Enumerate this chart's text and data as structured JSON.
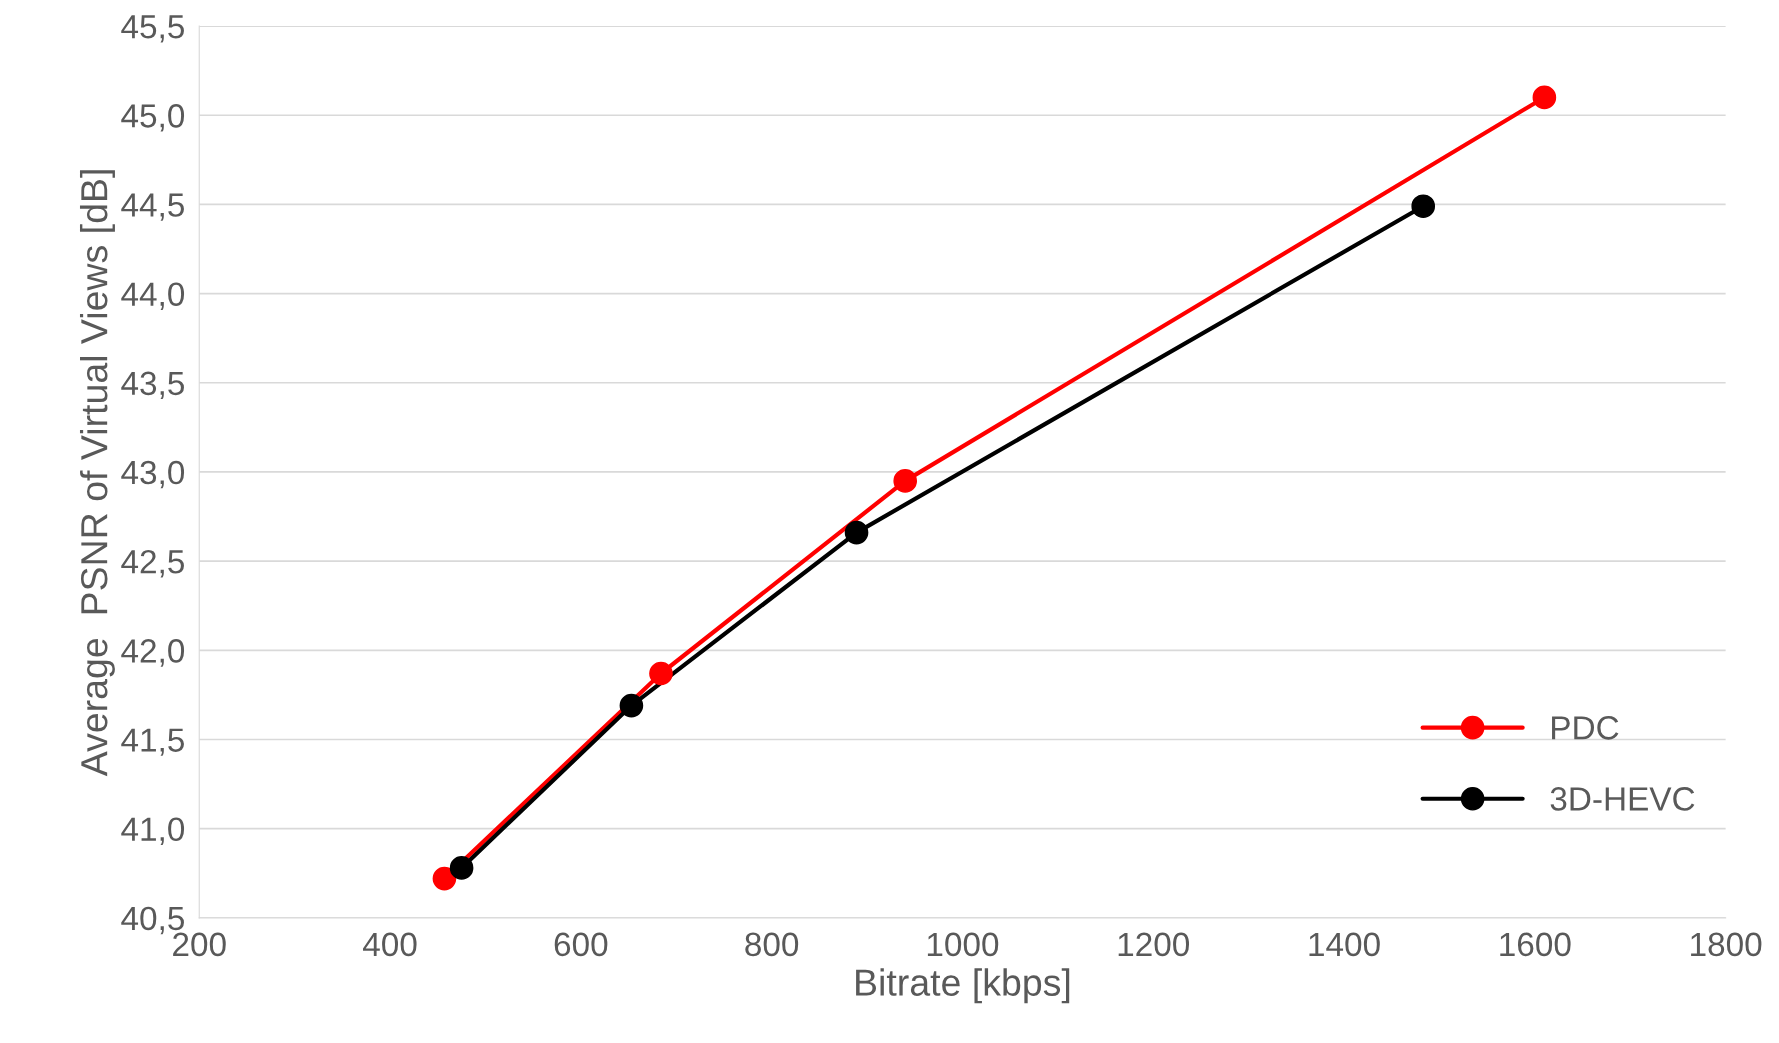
{
  "chart_data": {
    "type": "line",
    "xlabel": "Bitrate [kbps]",
    "ylabel": "Average  PSNR of Virtual Views [dB]",
    "series": [
      {
        "name": "PDC",
        "color": "#ff0000",
        "x": [
          457,
          684,
          940,
          1610
        ],
        "values": [
          40.72,
          41.87,
          42.95,
          45.1
        ]
      },
      {
        "name": "3D-HEVC",
        "color": "#000000",
        "x": [
          475,
          653,
          889,
          1483
        ],
        "values": [
          40.78,
          41.69,
          42.66,
          44.49
        ]
      }
    ],
    "xlim": [
      200,
      1800
    ],
    "xticks": [
      200,
      400,
      600,
      800,
      1000,
      1200,
      1400,
      1600,
      1800
    ],
    "ylim": [
      40.5,
      45.5
    ],
    "yticks": [
      {
        "value": 40.5,
        "label": "40,5"
      },
      {
        "value": 41,
        "label": "41,0"
      },
      {
        "value": 41.5,
        "label": "41,5"
      },
      {
        "value": 42,
        "label": "42,0"
      },
      {
        "value": 42.5,
        "label": "42,5"
      },
      {
        "value": 43,
        "label": "43,0"
      },
      {
        "value": 43.5,
        "label": "43,5"
      },
      {
        "value": 44,
        "label": "44,0"
      },
      {
        "value": 44.5,
        "label": "44,5"
      },
      {
        "value": 45,
        "label": "45,0"
      },
      {
        "value": 45.5,
        "label": "45,5"
      }
    ],
    "grid": "y",
    "legend": "right",
    "marker": "circle",
    "line_style": "solid"
  }
}
